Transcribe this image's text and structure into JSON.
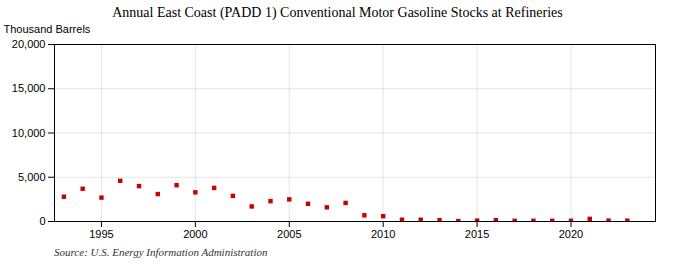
{
  "chart_data": {
    "type": "scatter",
    "title": "Annual East Coast (PADD 1) Conventional Motor Gasoline Stocks at Refineries",
    "ylabel": "Thousand Barrels",
    "annotations": [
      "Source: U.S. Energy Information Administration"
    ],
    "x": [
      1993,
      1994,
      1995,
      1996,
      1997,
      1998,
      1999,
      2000,
      2001,
      2002,
      2003,
      2004,
      2005,
      2006,
      2007,
      2008,
      2009,
      2010,
      2011,
      2012,
      2013,
      2014,
      2015,
      2016,
      2017,
      2018,
      2019,
      2020,
      2021,
      2022,
      2023
    ],
    "values": [
      2800,
      3700,
      2700,
      4600,
      4000,
      3100,
      4100,
      3300,
      3800,
      2900,
      1700,
      2300,
      2500,
      2000,
      1600,
      2100,
      700,
      600,
      200,
      200,
      150,
      50,
      100,
      150,
      80,
      80,
      80,
      80,
      300,
      100,
      100
    ],
    "color": "#cc0000",
    "marker": "square",
    "xlim": [
      1992.5,
      2024.5
    ],
    "xticks": [
      1995,
      2000,
      2005,
      2010,
      2015,
      2020
    ],
    "ylim": [
      0,
      20000
    ],
    "yticks": [
      0,
      {
        "value": 5000,
        "label": "5,000"
      },
      {
        "value": 10000,
        "label": "10,000"
      },
      {
        "value": 15000,
        "label": "15,000"
      },
      {
        "value": 20000,
        "label": "20,000"
      }
    ],
    "grid": true
  }
}
